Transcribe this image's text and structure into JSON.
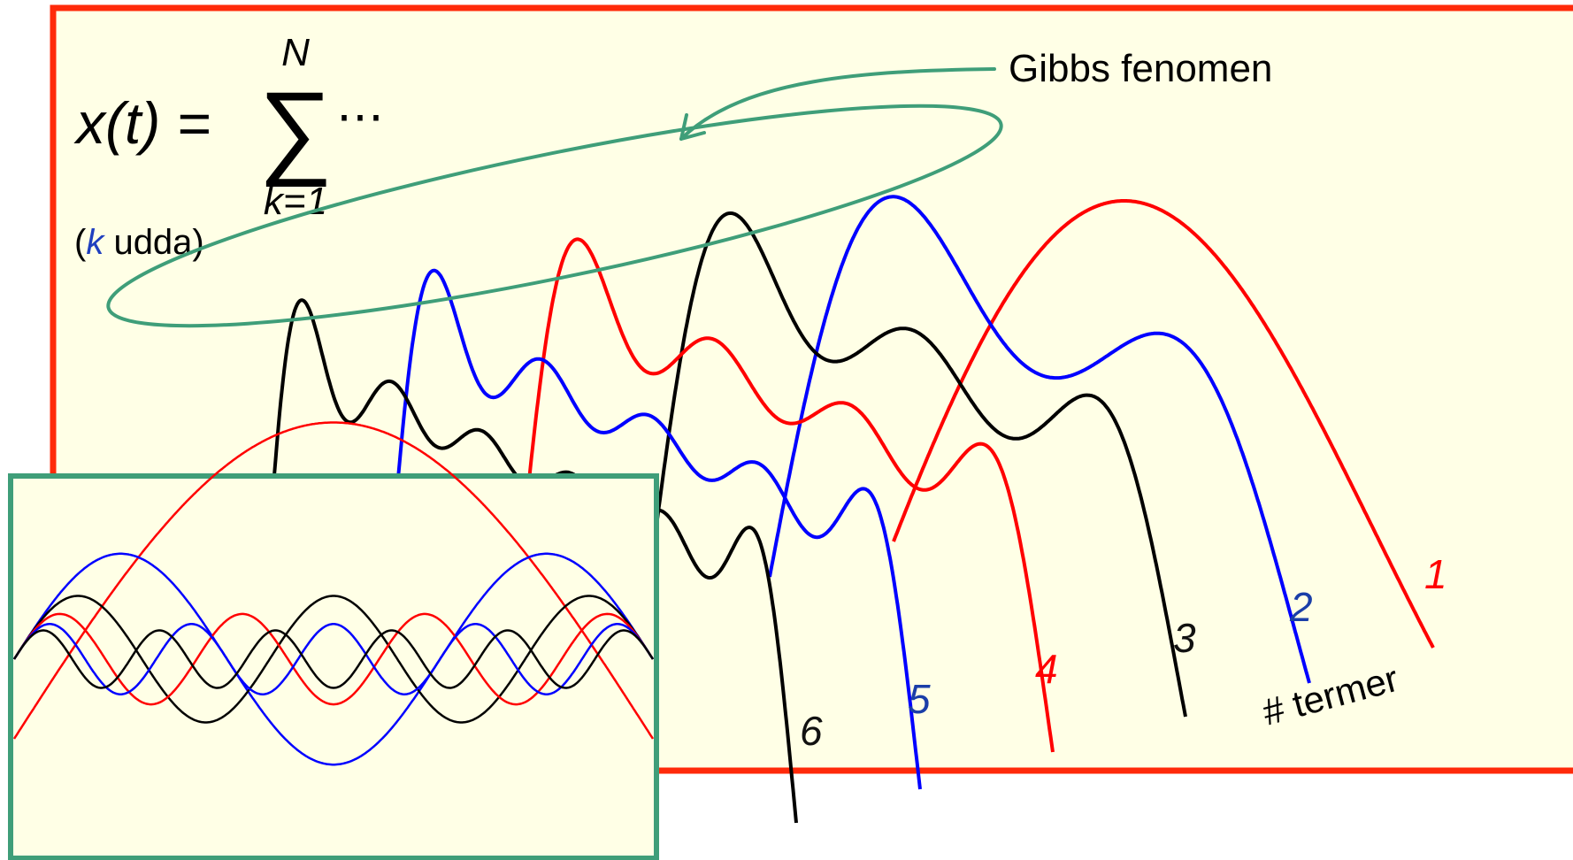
{
  "formula": {
    "lhs": "x(t) = ",
    "sum_symbol": "∑",
    "upper_limit": "N",
    "lower_limit": "k=1",
    "ellipsis": "⋯",
    "note_open": "(",
    "note_k": "k",
    "note_rest": " udda)"
  },
  "annotation": {
    "label": "Gibbs fenomen"
  },
  "axis_label": "# termer",
  "curves": [
    {
      "label": "1",
      "color": "#ff0000"
    },
    {
      "label": "2",
      "color": "#0000ff"
    },
    {
      "label": "3",
      "color": "#000000"
    },
    {
      "label": "4",
      "color": "#ff0000"
    },
    {
      "label": "5",
      "color": "#0000ff"
    },
    {
      "label": "6",
      "color": "#000000"
    }
  ],
  "label_colors": {
    "red": "#ff0000",
    "blue": "#1a3ea8",
    "black": "#111111"
  },
  "colors": {
    "main_frame": "#ff2a0a",
    "inset_frame": "#3f9e79",
    "panel_fill": "#ffffe6",
    "ellipse": "#3f9e79",
    "k_blue": "#1f3fbf"
  },
  "inset": {
    "harmonics": [
      {
        "k": 1,
        "color": "#ff0000"
      },
      {
        "k": 3,
        "color": "#0000ff"
      },
      {
        "k": 5,
        "color": "#000000"
      },
      {
        "k": 7,
        "color": "#ff0000"
      },
      {
        "k": 9,
        "color": "#0000ff"
      },
      {
        "k": 11,
        "color": "#000000"
      }
    ]
  }
}
